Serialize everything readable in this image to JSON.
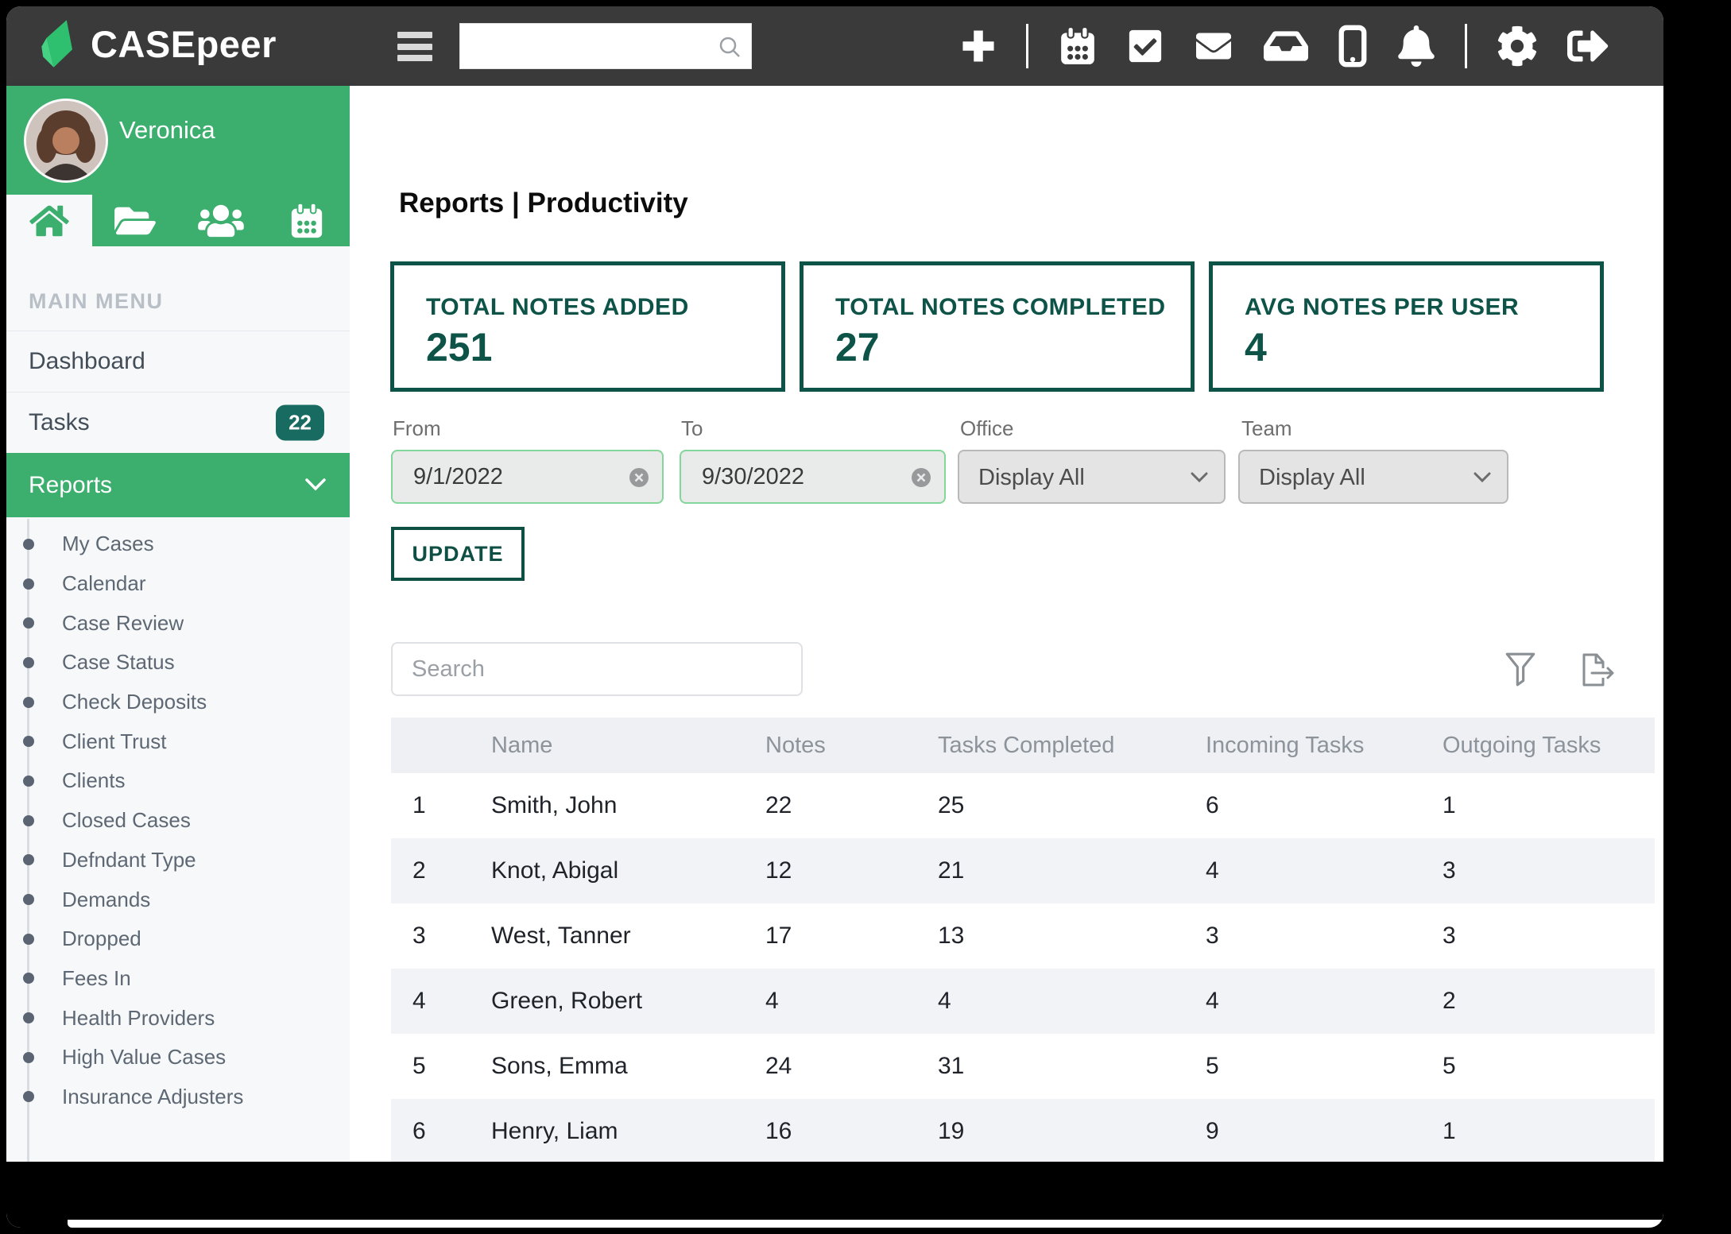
{
  "topbar": {
    "brand": "CASEpeer",
    "search_placeholder": "",
    "icon_names": [
      "menu-icon",
      "search-icon",
      "add-icon",
      "calendar-icon",
      "check-square-icon",
      "mail-icon",
      "inbox-icon",
      "mobile-icon",
      "bell-icon",
      "gear-icon",
      "sign-out-icon"
    ]
  },
  "sidebar": {
    "user_name": "Veronica",
    "tab_icons": [
      "home-icon",
      "folder-icon",
      "users-icon",
      "calendar-icon"
    ],
    "section_label": "MAIN MENU",
    "menu": [
      {
        "label": "Dashboard"
      },
      {
        "label": "Tasks",
        "badge": "22"
      },
      {
        "label": "Reports",
        "active": true
      }
    ],
    "submenu": [
      "My Cases",
      "Calendar",
      "Case Review",
      "Case Status",
      "Check Deposits",
      "Client Trust",
      "Clients",
      "Closed Cases",
      "Defndant Type",
      "Demands",
      "Dropped",
      "Fees In",
      "Health Providers",
      "High Value Cases",
      "Insurance Adjusters"
    ]
  },
  "main": {
    "title": "Reports | Productivity",
    "stats": [
      {
        "label": "TOTAL NOTES ADDED",
        "value": "251"
      },
      {
        "label": "TOTAL NOTES COMPLETED",
        "value": "27"
      },
      {
        "label": "AVG NOTES PER USER",
        "value": "4"
      }
    ],
    "filters": {
      "from_label": "From",
      "from_value": "9/1/2022",
      "to_label": "To",
      "to_value": "9/30/2022",
      "office_label": "Office",
      "office_value": "Display All",
      "team_label": "Team",
      "team_value": "Display All"
    },
    "update_label": "UPDATE",
    "search_placeholder": "Search",
    "table": {
      "columns": [
        "Name",
        "Notes",
        "Tasks Completed",
        "Incoming Tasks",
        "Outgoing Tasks"
      ],
      "rows": [
        {
          "rank": "1",
          "name": "Smith, John",
          "notes": "22",
          "tasks_completed": "25",
          "incoming": "6",
          "outgoing": "1"
        },
        {
          "rank": "2",
          "name": "Knot, Abigal",
          "notes": "12",
          "tasks_completed": "21",
          "incoming": "4",
          "outgoing": "3"
        },
        {
          "rank": "3",
          "name": "West, Tanner",
          "notes": "17",
          "tasks_completed": "13",
          "incoming": "3",
          "outgoing": "3"
        },
        {
          "rank": "4",
          "name": "Green, Robert",
          "notes": "4",
          "tasks_completed": "4",
          "incoming": "4",
          "outgoing": "2"
        },
        {
          "rank": "5",
          "name": "Sons, Emma",
          "notes": "24",
          "tasks_completed": "31",
          "incoming": "5",
          "outgoing": "5"
        },
        {
          "rank": "6",
          "name": "Henry, Liam",
          "notes": "16",
          "tasks_completed": "19",
          "incoming": "9",
          "outgoing": "1"
        }
      ]
    }
  },
  "colors": {
    "topbar": "#3a3a3a",
    "accent_green": "#3cae6e",
    "dark_teal": "#0d5348",
    "badge_teal": "#186b60",
    "input_green_border": "#83d79a"
  }
}
